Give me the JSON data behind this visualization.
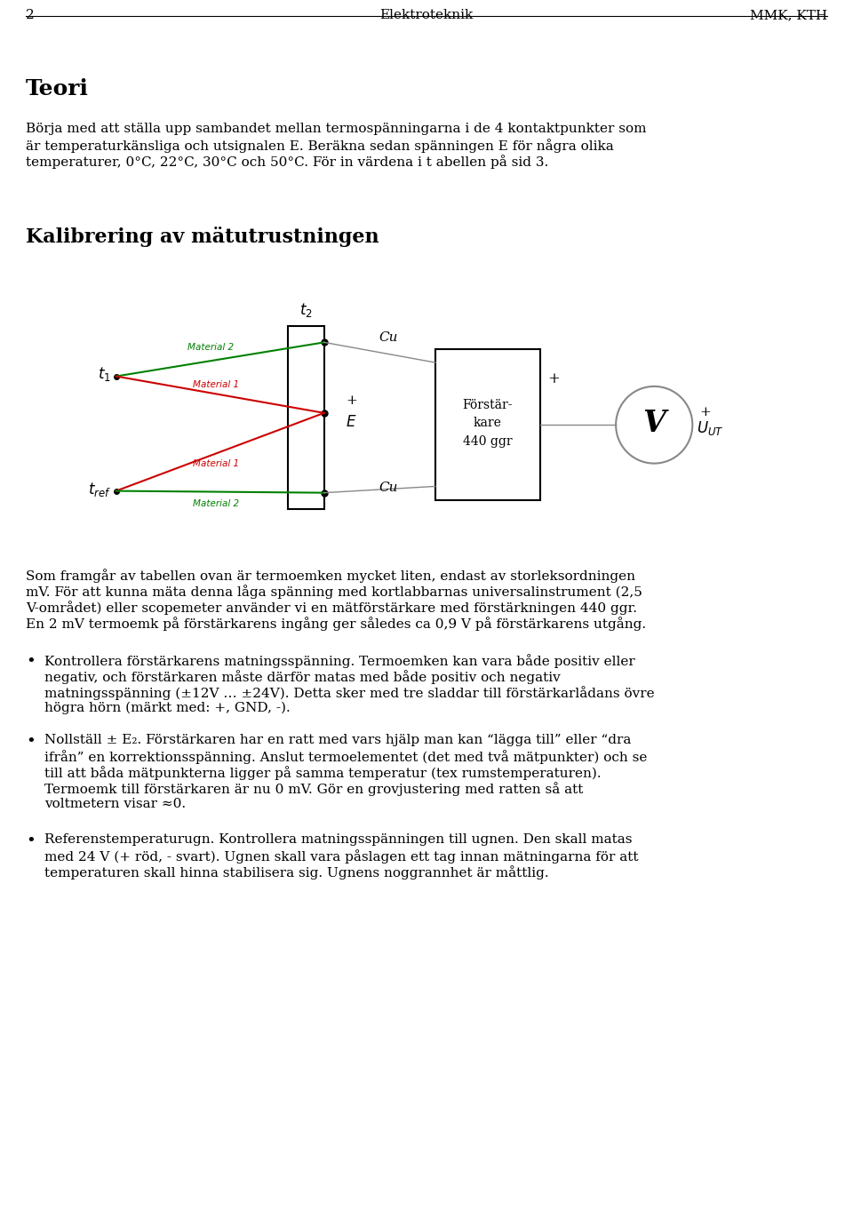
{
  "page_num": "2",
  "header_center": "Elektroteknik",
  "header_right": "MMK, KTH",
  "section_teori": "Teori",
  "para1_lines": [
    "Börja med att ställa upp sambandet mellan termospänningarna i de 4 kontaktpunkter som",
    "är temperaturkänsliga och utsignalen E. Beräkna sedan spänningen E för några olika",
    "temperaturer, 0°C, 22°C, 30°C och 50°C. För in värdena i t abellen på sid 3."
  ],
  "section_kalib": "Kalibrering av mätutrustningen",
  "para2_lines": [
    "Som framgår av tabellen ovan är termoemken mycket liten, endast av storleksordningen",
    "mV. För att kunna mäta denna låga spänning med kortlabbarnas universalinstrument (2,5",
    "V-området) eller scopemeter använder vi en mätförstärkare med förstärkningen 440 ggr.",
    "En 2 mV termoemk på förstärkarens ingång ger således ca 0,9 V på förstärkarens utgång."
  ],
  "bullet1_lines": [
    "Kontrollera förstärkarens matningsspänning. Termoemken kan vara både positiv eller",
    "negativ, och förstärkaren måste därför matas med både positiv och negativ",
    "matningsspänning (±12V … ±24V). Detta sker med tre sladdar till förstärkarlådans övre",
    "högra hörn (märkt med: +, GND, -)."
  ],
  "bullet2_lines": [
    "Nollställ ± E₂. Förstärkaren har en ratt med vars hjälp man kan “lägga till” eller “dra",
    "ifrån” en korrektionsspänning. Anslut termoelementet (det med två mätpunkter) och se",
    "till att båda mätpunkterna ligger på samma temperatur (tex rumstemperaturen).",
    "Termoemk till förstärkaren är nu 0 mV. Gör en grovjustering med ratten så att",
    "voltmetern visar ≈0."
  ],
  "bullet3_lines": [
    "Referenstemperaturugn. Kontrollera matningsspänningen till ugnen. Den skall matas",
    "med 24 V (+ röd, - svart). Ugnen skall vara påslagen ett tag innan mätningarna för att",
    "temperaturen skall hinna stabilisera sig. Ugnens noggrannhet är måttlig."
  ],
  "bg_color": "#ffffff",
  "text_color": "#000000",
  "green_color": "#008000",
  "red_color": "#cc0000",
  "gray_color": "#888888"
}
